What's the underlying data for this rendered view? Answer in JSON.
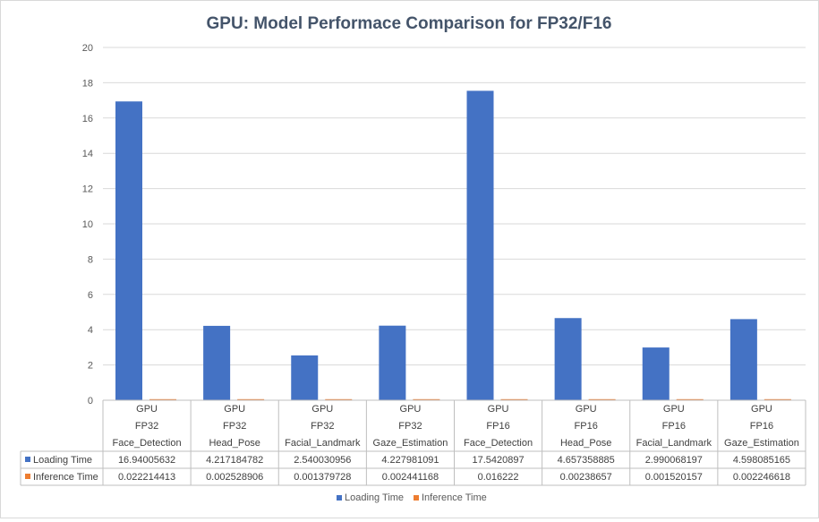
{
  "chart_data": {
    "type": "bar",
    "title": "GPU: Model Performace Comparison  for FP32/F16",
    "xlabel": "",
    "ylabel": "",
    "ylim": [
      0,
      20
    ],
    "yticks": [
      "0",
      "2",
      "4",
      "6",
      "8",
      "10",
      "12",
      "14",
      "16",
      "18",
      "20"
    ],
    "grid": true,
    "legend_position": "bottom",
    "categories": [
      {
        "device": "GPU",
        "precision": "FP32",
        "model": "Face_Detection"
      },
      {
        "device": "GPU",
        "precision": "FP32",
        "model": "Head_Pose"
      },
      {
        "device": "GPU",
        "precision": "FP32",
        "model": "Facial_Landmark"
      },
      {
        "device": "GPU",
        "precision": "FP32",
        "model": "Gaze_Estimation"
      },
      {
        "device": "GPU",
        "precision": "FP16",
        "model": "Face_Detection"
      },
      {
        "device": "GPU",
        "precision": "FP16",
        "model": "Head_Pose"
      },
      {
        "device": "GPU",
        "precision": "FP16",
        "model": "Facial_Landmark"
      },
      {
        "device": "GPU",
        "precision": "FP16",
        "model": "Gaze_Estimation"
      }
    ],
    "series": [
      {
        "name": "Loading Time",
        "color": "#4472c4",
        "values": [
          16.94005632,
          4.217184782,
          2.540030956,
          4.227981091,
          17.5420897,
          4.657358885,
          2.990068197,
          4.598085165
        ],
        "labels": [
          "16.94005632",
          "4.217184782",
          "2.540030956",
          "4.227981091",
          "17.5420897",
          "4.657358885",
          "2.990068197",
          "4.598085165"
        ]
      },
      {
        "name": "Inference Time",
        "color": "#ed7d31",
        "values": [
          0.022214413,
          0.002528906,
          0.001379728,
          0.002441168,
          0.016222,
          0.00238657,
          0.001520157,
          0.002246618
        ],
        "labels": [
          "0.022214413",
          "0.002528906",
          "0.001379728",
          "0.002441168",
          "0.016222",
          "0.00238657",
          "0.001520157",
          "0.002246618"
        ]
      }
    ]
  }
}
